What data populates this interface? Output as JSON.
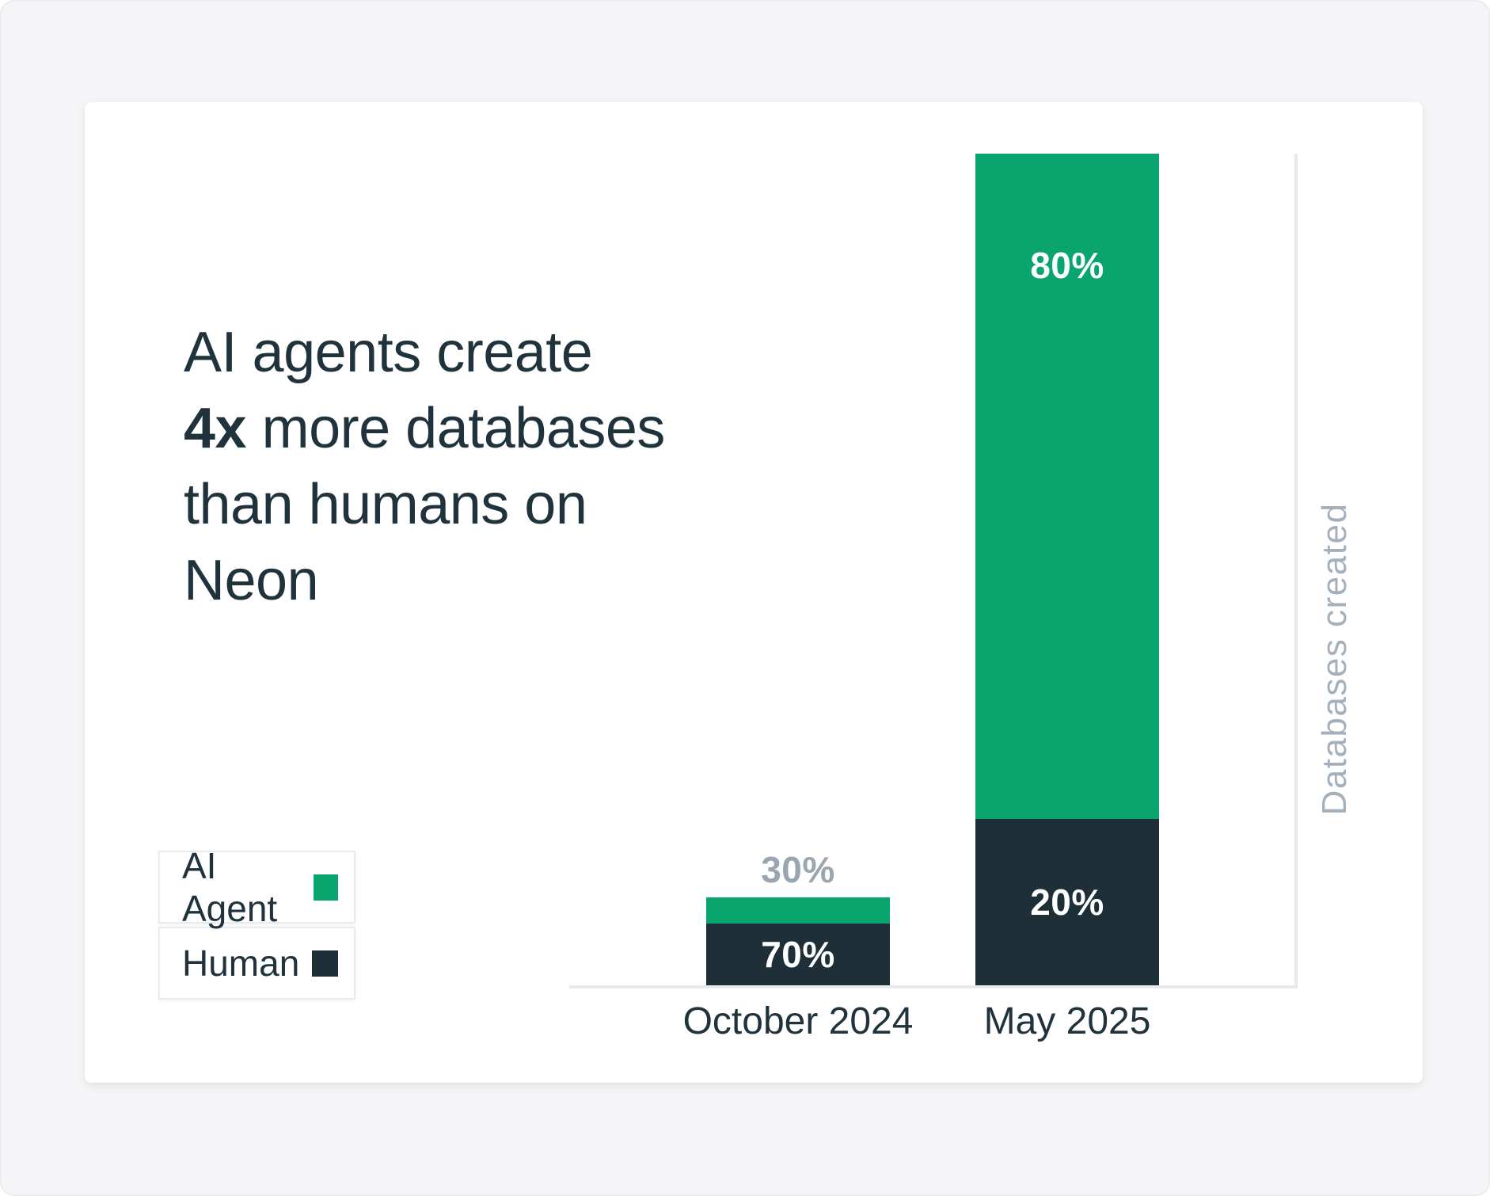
{
  "title": {
    "line1": "AI agents create",
    "line2_bold": "4x",
    "line2_rest": " more databases",
    "line3": "than humans on",
    "line4": "Neon"
  },
  "legend": {
    "items": [
      {
        "label": "AI Agent",
        "color": "#0aa56e"
      },
      {
        "label": "Human",
        "color": "#1e2f38"
      }
    ]
  },
  "chart_data": {
    "type": "bar",
    "stacked": true,
    "title": "AI agents create 4x more databases than humans on Neon",
    "categories": [
      "October 2024",
      "May 2025"
    ],
    "series": [
      {
        "name": "AI Agent",
        "color": "#0aa56e",
        "values_pct": [
          30,
          80
        ]
      },
      {
        "name": "Human",
        "color": "#1e2f38",
        "values_pct": [
          70,
          20
        ]
      }
    ],
    "right_axis_label": "Databases created",
    "grid": "off",
    "legend_position": "left",
    "bars": [
      {
        "category": "October 2024",
        "total_height_frac": 0.106,
        "segments": [
          {
            "series": "AI Agent",
            "pct": 30,
            "label": "30%",
            "label_placement": "above",
            "color": "#0aa56e",
            "label_color": "#99a6b1"
          },
          {
            "series": "Human",
            "pct": 70,
            "label": "70%",
            "label_placement": "center",
            "color": "#1e2f38",
            "label_color": "#ffffff"
          }
        ]
      },
      {
        "category": "May 2025",
        "total_height_frac": 1.0,
        "segments": [
          {
            "series": "AI Agent",
            "pct": 80,
            "label": "80%",
            "label_placement": "top",
            "color": "#0aa56e",
            "label_color": "#ffffff"
          },
          {
            "series": "Human",
            "pct": 20,
            "label": "20%",
            "label_placement": "center",
            "color": "#1e2f38",
            "label_color": "#ffffff"
          }
        ]
      }
    ]
  }
}
